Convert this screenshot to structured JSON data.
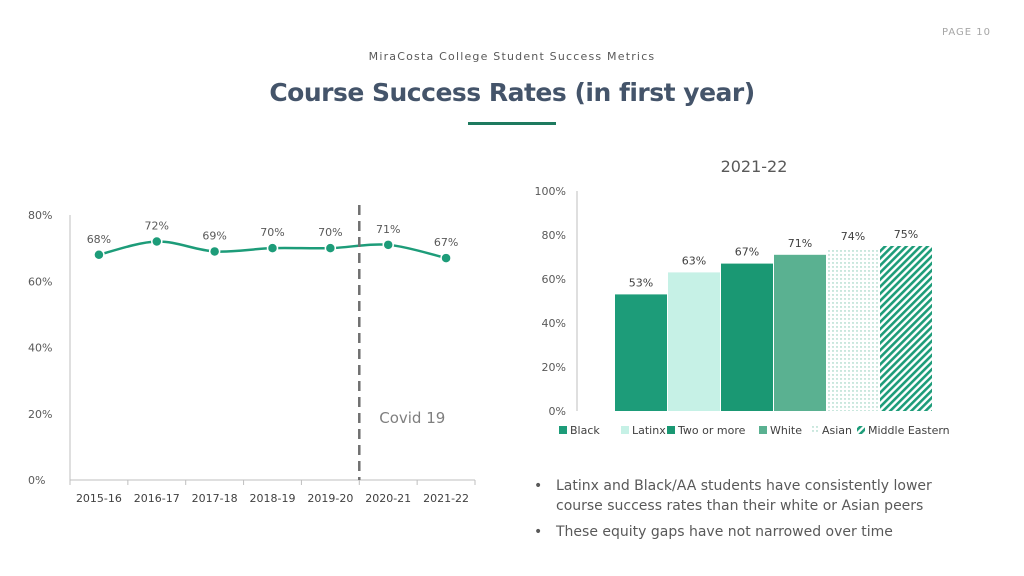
{
  "header": {
    "page_label": "PAGE 10",
    "subtitle": "MiraCosta College Student Success Metrics",
    "title": "Course Success Rates (in first year)"
  },
  "chart_data": [
    {
      "type": "line",
      "title": "",
      "categories": [
        "2015-16",
        "2016-17",
        "2017-18",
        "2018-19",
        "2019-20",
        "2020-21",
        "2021-22"
      ],
      "values": [
        68,
        72,
        69,
        70,
        70,
        71,
        67
      ],
      "data_labels": [
        "68%",
        "72%",
        "69%",
        "70%",
        "70%",
        "71%",
        "67%"
      ],
      "y_ticks": [
        0,
        20,
        40,
        60,
        80
      ],
      "y_tick_labels": [
        "0%",
        "20%",
        "40%",
        "60%",
        "80%"
      ],
      "ylim": [
        0,
        80
      ],
      "line_color": "#1d9c79",
      "annotation": {
        "label": "Covid 19",
        "between": [
          "2019-20",
          "2020-21"
        ]
      }
    },
    {
      "type": "bar",
      "title": "2021-22",
      "categories": [
        "Black",
        "Latinx",
        "Two or more",
        "White",
        "Asian",
        "Middle Eastern"
      ],
      "values": [
        53,
        63,
        67,
        71,
        74,
        75
      ],
      "data_labels": [
        "53%",
        "63%",
        "67%",
        "71%",
        "74%",
        "75%"
      ],
      "colors": [
        "#1d9c79",
        "#c6f1e6",
        "#1a9873",
        "#5ab191",
        "#d4ebe2",
        "#1d9c79"
      ],
      "patterns": [
        "solid",
        "solid",
        "solid",
        "solid",
        "dots",
        "diagonal"
      ],
      "y_ticks": [
        0,
        20,
        40,
        60,
        80,
        100
      ],
      "y_tick_labels": [
        "0%",
        "20%",
        "40%",
        "60%",
        "80%",
        "100%"
      ],
      "ylim": [
        0,
        100
      ],
      "legend_position": "bottom"
    }
  ],
  "bullets": [
    "Latinx and Black/AA students have consistently lower course success rates than their white or Asian peers",
    "These equity gaps have not narrowed over time"
  ],
  "bullet_symbol": "•"
}
